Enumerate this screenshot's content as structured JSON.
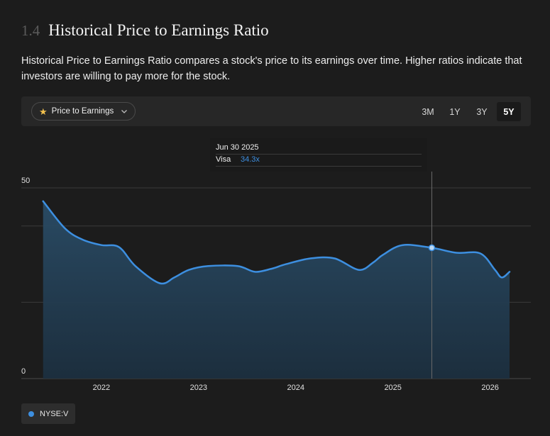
{
  "section": {
    "number": "1.4",
    "title": "Historical Price to Earnings Ratio"
  },
  "description": "Historical Price to Earnings Ratio compares a stock's price to its earnings over time. Higher ratios indicate that investors are willing to pay more for the stock.",
  "toolbar": {
    "metric_select": {
      "icon": "star-icon",
      "label": "Price to Earnings",
      "chevron": "chevron-down-icon"
    },
    "ranges": [
      {
        "label": "3M",
        "active": false
      },
      {
        "label": "1Y",
        "active": false
      },
      {
        "label": "3Y",
        "active": false
      },
      {
        "label": "5Y",
        "active": true
      }
    ]
  },
  "tooltip": {
    "date": "Jun 30 2025",
    "series": "Visa",
    "value": "34.3x"
  },
  "legend": {
    "label": "NYSE:V",
    "color": "#3d8fe0"
  },
  "colors": {
    "line": "#3d8fe0",
    "fill_top": "#2a4c66",
    "fill_bottom": "#1c2f3f",
    "grid": "#3a3a3a",
    "crosshair": "#6a6a6a"
  },
  "chart_data": {
    "type": "area",
    "series": [
      {
        "name": "NYSE:V",
        "x": [
          2021.5,
          2021.72,
          2021.9,
          2022.1,
          2022.28,
          2022.45,
          2022.7,
          2022.85,
          2023.0,
          2023.2,
          2023.5,
          2023.68,
          2023.85,
          2024.0,
          2024.25,
          2024.5,
          2024.75,
          2024.9,
          2025.0,
          2025.2,
          2025.5,
          2025.75,
          2026.0,
          2026.15,
          2026.22,
          2026.3
        ],
        "y": [
          46.5,
          39.5,
          36.5,
          35.0,
          34.5,
          29.5,
          25.0,
          26.5,
          28.5,
          29.5,
          29.5,
          28.0,
          28.8,
          30.0,
          31.5,
          31.5,
          28.5,
          30.5,
          32.5,
          35.0,
          34.3,
          33.0,
          32.8,
          28.5,
          26.5,
          28.0
        ]
      }
    ],
    "xticks": [
      "2022",
      "2023",
      "2024",
      "2025",
      "2026"
    ],
    "yticks": [
      "50",
      "0"
    ],
    "ylim": [
      0,
      50
    ],
    "xlim": [
      2021.48,
      2026.3
    ],
    "highlight": {
      "x": 2025.5,
      "y": 34.3
    },
    "grid": true
  }
}
